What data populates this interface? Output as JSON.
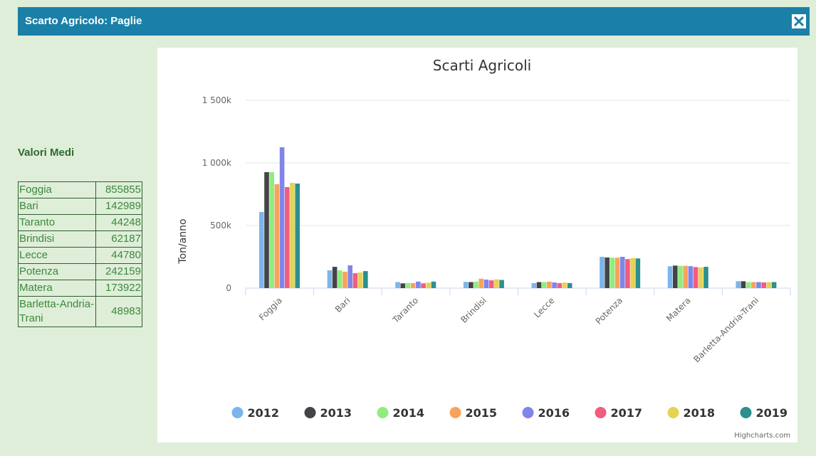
{
  "header": {
    "title": "Scarto Agricolo: Paglie"
  },
  "table": {
    "title": "Valori Medi",
    "rows": [
      [
        "Foggia",
        855855
      ],
      [
        "Bari",
        142989
      ],
      [
        "Taranto",
        44248
      ],
      [
        "Brindisi",
        62187
      ],
      [
        "Lecce",
        44780
      ],
      [
        "Potenza",
        242159
      ],
      [
        "Matera",
        173922
      ],
      [
        "Barletta-Andria-Trani",
        48983
      ]
    ]
  },
  "chart_data": {
    "type": "bar",
    "title": "Scarti Agricoli",
    "y_label": "Ton/anno",
    "credits": "Highcharts.com",
    "categories": [
      "Foggia",
      "Bari",
      "Taranto",
      "Brindisi",
      "Lecce",
      "Potenza",
      "Matera",
      "Barletta-Andria-Trani"
    ],
    "ylim": [
      0,
      1500000
    ],
    "yticks": [
      0,
      {
        "value": 500000,
        "label": "500k"
      },
      {
        "value": 1000000,
        "label": "1 000k"
      },
      {
        "value": 1500000,
        "label": "1 500k"
      }
    ],
    "grid": true,
    "legend": "bottom",
    "series": [
      {
        "name": "2012",
        "color": "#7cb5ec",
        "values": [
          608000,
          142000,
          48000,
          50000,
          40000,
          250000,
          175000,
          55000
        ]
      },
      {
        "name": "2013",
        "color": "#434348",
        "values": [
          926000,
          170000,
          38000,
          48000,
          48000,
          245000,
          180000,
          55000
        ]
      },
      {
        "name": "2014",
        "color": "#90ed7d",
        "values": [
          926000,
          142000,
          40000,
          52000,
          48000,
          243000,
          178000,
          48000
        ]
      },
      {
        "name": "2015",
        "color": "#f7a35c",
        "values": [
          830000,
          131000,
          40000,
          75000,
          52000,
          243000,
          178000,
          48000
        ]
      },
      {
        "name": "2016",
        "color": "#8085e9",
        "values": [
          1125000,
          182000,
          52000,
          68000,
          45000,
          250000,
          175000,
          48000
        ]
      },
      {
        "name": "2017",
        "color": "#f15c80",
        "values": [
          807000,
          119000,
          38000,
          62000,
          40000,
          232000,
          168000,
          45000
        ]
      },
      {
        "name": "2018",
        "color": "#e4d354",
        "values": [
          841000,
          125000,
          44000,
          70000,
          45000,
          240000,
          165000,
          48000
        ]
      },
      {
        "name": "2019",
        "color": "#2b908f",
        "values": [
          835000,
          136000,
          52000,
          65000,
          40000,
          237000,
          170000,
          48000
        ]
      }
    ]
  }
}
